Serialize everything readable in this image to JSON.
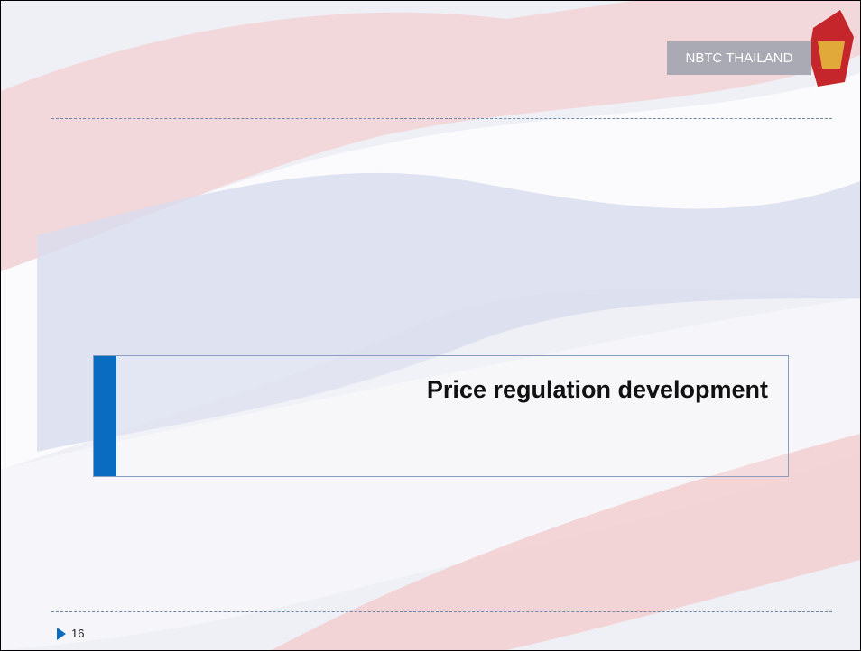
{
  "header": {
    "badge": "NBTC THAILAND"
  },
  "slide": {
    "title": "Price regulation development",
    "page_number": "16"
  }
}
